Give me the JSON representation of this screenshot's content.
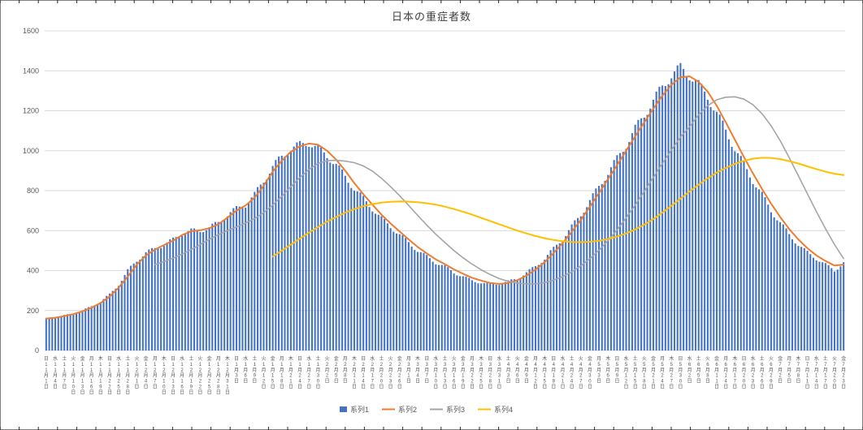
{
  "chart_data": {
    "type": "bar",
    "title": "日本の重症者数",
    "xlabel": "",
    "ylabel": "",
    "ylim": [
      0,
      1600
    ],
    "ytick_step": 200,
    "grid": true,
    "legend_position": "bottom",
    "colors": {
      "axis_text": "#595959",
      "gridline": "#d9d9d9",
      "frame": "#808080",
      "edge_tick": "#262626",
      "title_text": "#404040"
    },
    "categories": [
      "日11月1日",
      "水11月4日",
      "土11月7日",
      "火11月10日",
      "金11月13日",
      "月11月16日",
      "木11月19日",
      "日11月22日",
      "水11月25日",
      "土11月28日",
      "火12月1日",
      "金12月4日",
      "月12月7日",
      "木12月10日",
      "日12月13日",
      "水12月16日",
      "土12月19日",
      "火12月22日",
      "金12月25日",
      "月12月28日",
      "木12月31日",
      "日1月3日",
      "水1月6日",
      "土1月9日",
      "火1月12日",
      "金1月15日",
      "月1月18日",
      "木1月21日",
      "日1月24日",
      "水1月27日",
      "土1月30日",
      "火2月2日",
      "金2月5日",
      "月2月8日",
      "木2月11日",
      "日2月14日",
      "水2月17日",
      "土2月20日",
      "火2月23日",
      "金2月26日",
      "月3月1日",
      "木3月4日",
      "日3月7日",
      "水3月10日",
      "土3月13日",
      "火3月16日",
      "金3月19日",
      "月3月22日",
      "木3月25日",
      "日3月28日",
      "水3月31日",
      "土4月3日",
      "火4月6日",
      "金4月9日",
      "月4月12日",
      "木4月15日",
      "日4月18日",
      "水4月21日",
      "土4月24日",
      "火4月27日",
      "金4月30日",
      "月5月3日",
      "木5月6日",
      "日5月9日",
      "水5月12日",
      "土5月15日",
      "火5月18日",
      "金5月21日",
      "月5月24日",
      "木5月27日",
      "日5月30日",
      "水6月2日",
      "土6月5日",
      "火6月8日",
      "金6月11日",
      "月6月14日",
      "木6月17日",
      "日6月20日",
      "水6月23日",
      "土6月26日",
      "火6月29日",
      "金7月2日",
      "月7月5日",
      "木7月8日",
      "日7月11日",
      "水7月14日",
      "土7月17日",
      "火7月20日",
      "金7月23日"
    ],
    "series": [
      {
        "name": "系列1",
        "type": "bar",
        "color": "#4472C4",
        "values": [
          160,
          165,
          175,
          185,
          200,
          220,
          245,
          280,
          330,
          400,
          450,
          490,
          510,
          530,
          555,
          585,
          600,
          600,
          615,
          640,
          680,
          710,
          730,
          780,
          850,
          920,
          970,
          1010,
          1030,
          1040,
          1010,
          975,
          930,
          870,
          810,
          760,
          710,
          660,
          620,
          580,
          540,
          500,
          470,
          440,
          420,
          390,
          370,
          350,
          340,
          330,
          335,
          345,
          360,
          390,
          420,
          460,
          510,
          560,
          620,
          680,
          750,
          820,
          890,
          960,
          1030,
          1110,
          1180,
          1250,
          1320,
          1380,
          1413,
          1380,
          1330,
          1270,
          1190,
          1100,
          1010,
          930,
          850,
          780,
          700,
          640,
          580,
          530,
          490,
          460,
          430,
          400,
          440
        ]
      },
      {
        "name": "系列2",
        "type": "line",
        "color": "#ED7D31",
        "values": [
          160,
          164,
          172,
          182,
          196,
          214,
          238,
          270,
          315,
          370,
          430,
          475,
          505,
          528,
          550,
          578,
          597,
          602,
          612,
          632,
          665,
          700,
          726,
          765,
          825,
          895,
          950,
          995,
          1022,
          1036,
          1030,
          1000,
          955,
          900,
          838,
          782,
          730,
          680,
          636,
          596,
          556,
          518,
          486,
          456,
          432,
          406,
          384,
          364,
          350,
          338,
          333,
          338,
          352,
          375,
          405,
          442,
          488,
          538,
          594,
          654,
          720,
          788,
          858,
          928,
          1000,
          1072,
          1142,
          1210,
          1275,
          1330,
          1368,
          1372,
          1345,
          1295,
          1225,
          1142,
          1055,
          968,
          886,
          808,
          735,
          668,
          608,
          556,
          512,
          476,
          448,
          425,
          430
        ]
      },
      {
        "name": "系列3",
        "type": "line",
        "color": "#A5A5A5",
        "values": [
          null,
          null,
          null,
          null,
          null,
          null,
          null,
          null,
          null,
          null,
          null,
          null,
          430,
          445,
          462,
          482,
          505,
          530,
          556,
          580,
          600,
          618,
          638,
          660,
          690,
          728,
          772,
          820,
          866,
          906,
          936,
          950,
          952,
          948,
          940,
          924,
          898,
          862,
          820,
          775,
          726,
          676,
          628,
          582,
          540,
          500,
          464,
          432,
          404,
          380,
          360,
          346,
          337,
          333,
          334,
          340,
          352,
          370,
          394,
          424,
          460,
          502,
          550,
          604,
          664,
          728,
          796,
          866,
          936,
          1004,
          1068,
          1120,
          1180,
          1225,
          1255,
          1268,
          1270,
          1258,
          1230,
          1185,
          1125,
          1050,
          965,
          875,
          785,
          695,
          610,
          530,
          460
        ]
      },
      {
        "name": "系列4",
        "type": "line",
        "color": "#FFC000",
        "values": [
          null,
          null,
          null,
          null,
          null,
          null,
          null,
          null,
          null,
          null,
          null,
          null,
          null,
          null,
          null,
          null,
          null,
          null,
          null,
          null,
          null,
          null,
          null,
          null,
          null,
          470,
          500,
          530,
          560,
          590,
          618,
          645,
          668,
          690,
          708,
          722,
          733,
          740,
          744,
          746,
          745,
          742,
          737,
          730,
          720,
          708,
          695,
          680,
          664,
          648,
          632,
          616,
          600,
          586,
          573,
          562,
          553,
          547,
          543,
          542,
          544,
          549,
          558,
          570,
          586,
          606,
          630,
          658,
          690,
          724,
          760,
          796,
          830,
          862,
          890,
          914,
          934,
          950,
          960,
          965,
          964,
          958,
          948,
          936,
          922,
          908,
          895,
          885,
          878
        ]
      }
    ]
  }
}
